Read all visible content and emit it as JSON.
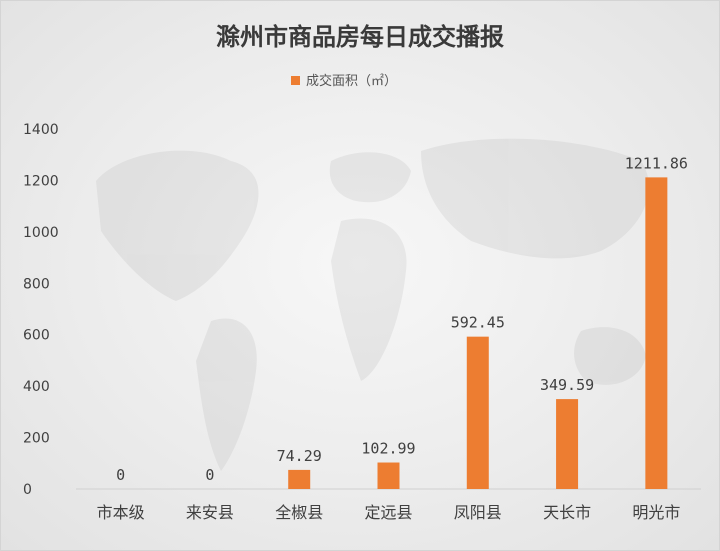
{
  "chart_data": {
    "type": "bar",
    "title": "滁州市商品房每日成交播报",
    "categories": [
      "市本级",
      "来安县",
      "全椒县",
      "定远县",
      "凤阳县",
      "天长市",
      "明光市"
    ],
    "series": [
      {
        "name": "成交面积（㎡）",
        "values": [
          0,
          0,
          74.29,
          102.99,
          592.45,
          349.59,
          1211.86
        ],
        "labels": [
          "0",
          "0",
          "74.29",
          "102.99",
          "592.45",
          "349.59",
          "1211.86"
        ],
        "color": "#ed7d31"
      }
    ],
    "yticks": [
      "0",
      "200",
      "400",
      "600",
      "800",
      "1000",
      "1200",
      "1400"
    ],
    "ylim": [
      0,
      1400
    ],
    "xlabel": "",
    "ylabel": "",
    "legend_position": "top",
    "grid": false
  }
}
